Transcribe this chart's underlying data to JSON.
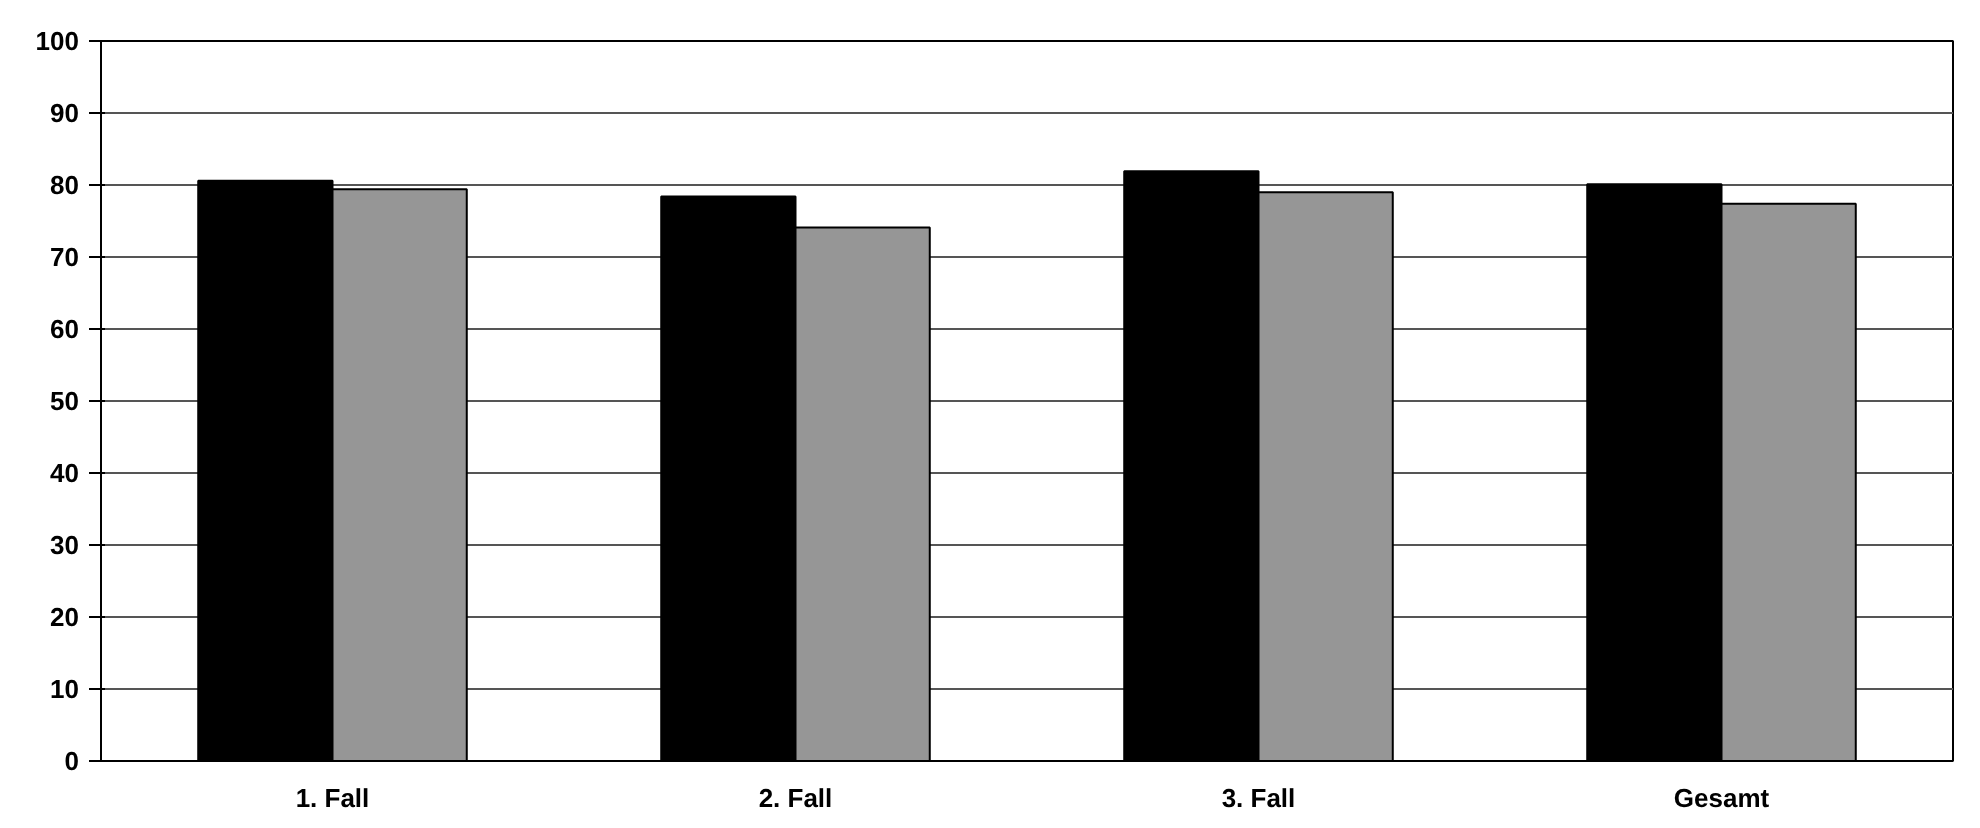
{
  "chart_data": {
    "type": "bar",
    "categories": [
      "1. Fall",
      "2. Fall",
      "3. Fall",
      "Gesamt"
    ],
    "series": [
      {
        "color": "#000000",
        "values": [
          80.6,
          78.4,
          81.9,
          80.1
        ]
      },
      {
        "color": "#969696",
        "values": [
          79.4,
          74.1,
          79.0,
          77.4
        ]
      }
    ],
    "ylim": [
      0,
      100
    ],
    "yticks": [
      0,
      10,
      20,
      30,
      40,
      50,
      60,
      70,
      80,
      90,
      100
    ],
    "grid": "y"
  }
}
